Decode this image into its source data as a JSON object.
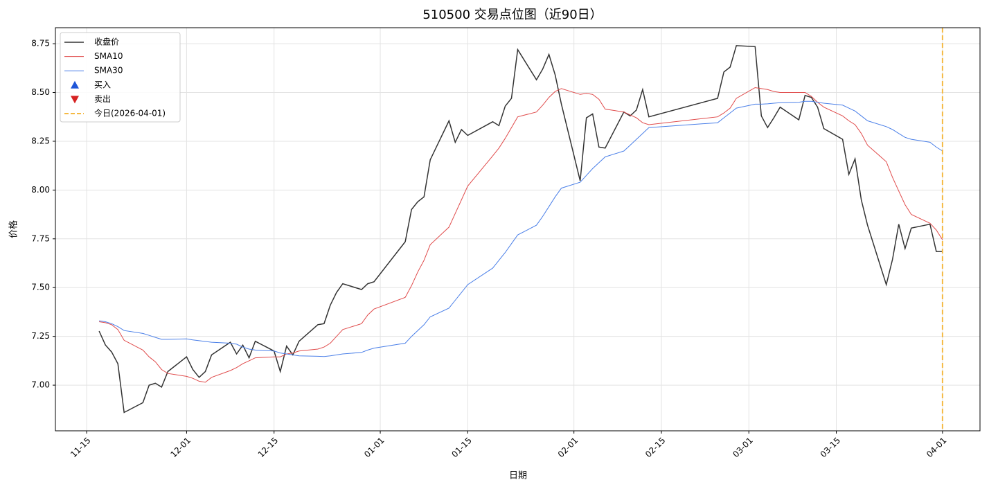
{
  "chart_data": {
    "type": "line",
    "title": "510500 交易点位图（近90日）",
    "x_label": "日期",
    "y_label": "价格",
    "x": [
      "11-17",
      "11-18",
      "11-19",
      "11-20",
      "11-21",
      "11-24",
      "11-25",
      "11-26",
      "11-27",
      "11-28",
      "12-01",
      "12-02",
      "12-03",
      "12-04",
      "12-05",
      "12-08",
      "12-09",
      "12-10",
      "12-11",
      "12-12",
      "12-15",
      "12-16",
      "12-17",
      "12-18",
      "12-19",
      "12-22",
      "12-23",
      "12-24",
      "12-25",
      "12-26",
      "12-29",
      "12-30",
      "12-31",
      "01-05",
      "01-06",
      "01-07",
      "01-08",
      "01-09",
      "01-12",
      "01-13",
      "01-14",
      "01-15",
      "01-19",
      "01-20",
      "01-21",
      "01-22",
      "01-23",
      "01-26",
      "01-27",
      "01-28",
      "01-29",
      "01-30",
      "02-02",
      "02-03",
      "02-04",
      "02-05",
      "02-06",
      "02-09",
      "02-10",
      "02-11",
      "02-12",
      "02-13",
      "02-24",
      "02-25",
      "02-26",
      "02-27",
      "03-02",
      "03-03",
      "03-04",
      "03-05",
      "03-06",
      "03-09",
      "03-10",
      "03-11",
      "03-12",
      "03-13",
      "03-16",
      "03-17",
      "03-18",
      "03-19",
      "03-20",
      "03-23",
      "03-24",
      "03-25",
      "03-26",
      "03-27",
      "03-30",
      "03-31",
      "04-01"
    ],
    "series": [
      {
        "name": "收盘价",
        "color": "#333333",
        "width": 1.5,
        "values": [
          7.277,
          7.206,
          7.17,
          7.11,
          6.86,
          6.91,
          7.0,
          7.01,
          6.99,
          7.07,
          7.145,
          7.08,
          7.04,
          7.07,
          7.155,
          7.22,
          7.16,
          7.205,
          7.14,
          7.225,
          7.175,
          7.07,
          7.2,
          7.155,
          7.225,
          7.31,
          7.315,
          7.41,
          7.475,
          7.52,
          7.49,
          7.52,
          7.53,
          7.735,
          7.9,
          7.94,
          7.965,
          8.155,
          8.355,
          8.245,
          8.31,
          8.28,
          8.35,
          8.33,
          8.43,
          8.47,
          8.72,
          8.565,
          8.62,
          8.695,
          8.59,
          8.44,
          8.047,
          8.37,
          8.39,
          8.22,
          8.215,
          8.4,
          8.38,
          8.41,
          8.515,
          8.375,
          8.47,
          8.605,
          8.63,
          8.74,
          8.735,
          8.38,
          8.32,
          8.37,
          8.425,
          8.36,
          8.485,
          8.475,
          8.425,
          8.315,
          8.26,
          8.08,
          8.16,
          7.95,
          7.82,
          7.515,
          7.645,
          7.825,
          7.7,
          7.805,
          7.825,
          7.685,
          7.685
        ]
      },
      {
        "name": "SMA10",
        "color": "#e04b4b",
        "width": 1,
        "values": [
          7.325,
          7.32,
          7.31,
          7.285,
          7.23,
          7.18,
          7.145,
          7.12,
          7.08,
          7.06,
          7.045,
          7.035,
          7.02,
          7.015,
          7.04,
          7.075,
          7.09,
          7.11,
          7.125,
          7.14,
          7.145,
          7.145,
          7.16,
          7.165,
          7.175,
          7.185,
          7.195,
          7.215,
          7.25,
          7.285,
          7.315,
          7.36,
          7.39,
          7.45,
          7.51,
          7.58,
          7.64,
          7.72,
          7.81,
          7.88,
          7.95,
          8.02,
          8.175,
          8.215,
          8.265,
          8.32,
          8.375,
          8.4,
          8.435,
          8.475,
          8.505,
          8.52,
          8.49,
          8.495,
          8.49,
          8.465,
          8.415,
          8.4,
          8.385,
          8.37,
          8.345,
          8.335,
          8.375,
          8.395,
          8.42,
          8.47,
          8.525,
          8.52,
          8.515,
          8.505,
          8.5,
          8.5,
          8.5,
          8.48,
          8.45,
          8.425,
          8.38,
          8.355,
          8.335,
          8.29,
          8.23,
          8.145,
          8.065,
          7.995,
          7.925,
          7.875,
          7.83,
          7.795,
          7.745
        ]
      },
      {
        "name": "SMA30",
        "color": "#4a7fe8",
        "width": 1,
        "values": [
          7.33,
          7.325,
          7.315,
          7.3,
          7.28,
          7.265,
          7.255,
          7.245,
          7.235,
          7.235,
          7.237,
          7.232,
          7.228,
          7.224,
          7.22,
          7.215,
          7.21,
          7.195,
          7.185,
          7.18,
          7.175,
          7.165,
          7.16,
          7.155,
          7.15,
          7.148,
          7.147,
          7.15,
          7.155,
          7.16,
          7.168,
          7.18,
          7.19,
          7.215,
          7.25,
          7.28,
          7.31,
          7.35,
          7.395,
          7.435,
          7.475,
          7.515,
          7.6,
          7.64,
          7.68,
          7.725,
          7.77,
          7.82,
          7.865,
          7.915,
          7.965,
          8.01,
          8.04,
          8.075,
          8.11,
          8.14,
          8.17,
          8.2,
          8.23,
          8.26,
          8.29,
          8.32,
          8.345,
          8.37,
          8.395,
          8.42,
          8.44,
          8.44,
          8.442,
          8.445,
          8.448,
          8.45,
          8.455,
          8.455,
          8.45,
          8.445,
          8.435,
          8.42,
          8.405,
          8.38,
          8.355,
          8.325,
          8.31,
          8.29,
          8.27,
          8.26,
          8.245,
          8.22,
          8.2
        ]
      }
    ],
    "legend_markers": [
      {
        "name": "买入",
        "color": "#1f56d8",
        "marker": "up"
      },
      {
        "name": "卖出",
        "color": "#d62222",
        "marker": "down"
      }
    ],
    "vline": {
      "x": "04-01",
      "label": "今日(2026-04-01)",
      "color": "#f5b942"
    },
    "xlim": [
      "11-10",
      "04-07"
    ],
    "xticks": [
      "11-15",
      "12-01",
      "12-15",
      "01-01",
      "01-15",
      "02-01",
      "02-15",
      "03-01",
      "03-15",
      "04-01"
    ],
    "ylim": [
      6.766,
      8.832
    ],
    "yticks": [
      {
        "value": 7,
        "label": "7.00"
      },
      {
        "value": 7.25,
        "label": "7.25"
      },
      {
        "value": 7.5,
        "label": "7.50"
      },
      {
        "value": 7.75,
        "label": "7.75"
      },
      {
        "value": 8,
        "label": "8.00"
      },
      {
        "value": 8.25,
        "label": "8.25"
      },
      {
        "value": 8.5,
        "label": "8.50"
      },
      {
        "value": 8.75,
        "label": "8.75"
      }
    ],
    "grid": true,
    "legend": "upper left"
  }
}
